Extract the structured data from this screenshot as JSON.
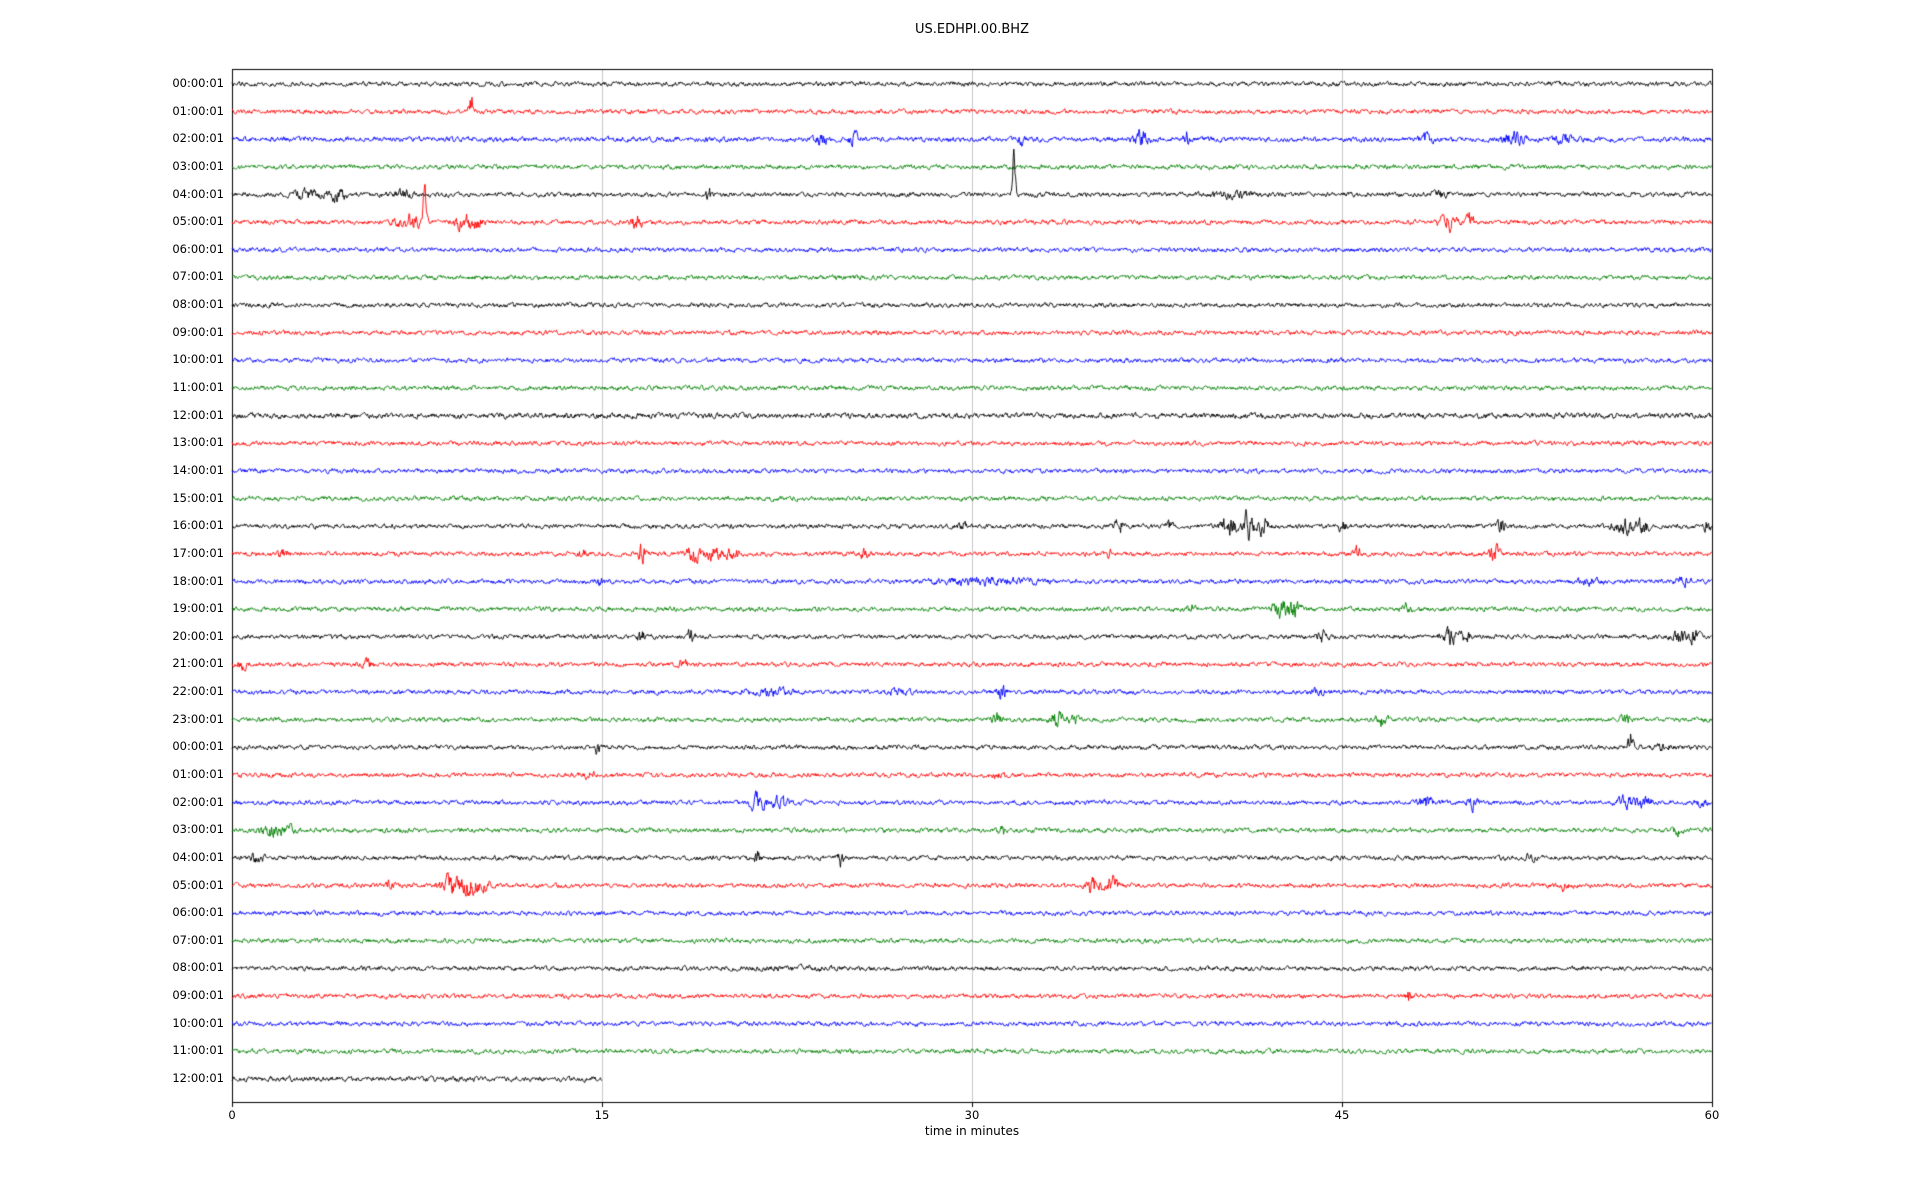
{
  "title": "US.EDHPI.00.BHZ",
  "chart_data": {
    "type": "line",
    "subtype": "helicorder-seismogram",
    "title": "US.EDHPI.00.BHZ",
    "xlabel": "time in minutes",
    "xlim": [
      0,
      60
    ],
    "xticks": [
      0,
      15,
      30,
      45,
      60
    ],
    "grid": "vertical gridlines at interior x ticks",
    "trace_color_cycle": [
      "#000000",
      "#ff0000",
      "#0000ff",
      "#008000"
    ],
    "rows": [
      {
        "label": "00:00:01",
        "color": "#000000",
        "amp": 1.0,
        "events": []
      },
      {
        "label": "01:00:01",
        "color": "#ff0000",
        "amp": 1.0,
        "events": [
          [
            9.7,
            0.12,
            4,
            9
          ]
        ]
      },
      {
        "label": "02:00:01",
        "color": "#0000ff",
        "amp": 1.1,
        "events": [
          [
            23.9,
            0.25,
            2.5
          ],
          [
            25.2,
            0.2,
            2.5
          ],
          [
            32.0,
            0.1,
            4
          ],
          [
            36.9,
            0.3,
            3
          ],
          [
            38.7,
            0.1,
            3
          ],
          [
            48.4,
            0.25,
            2.5
          ],
          [
            52.0,
            0.4,
            2.5
          ],
          [
            54.0,
            0.3,
            2.2
          ]
        ]
      },
      {
        "label": "03:00:01",
        "color": "#008000",
        "amp": 1.0,
        "events": []
      },
      {
        "label": "04:00:01",
        "color": "#000000",
        "amp": 1.0,
        "events": [
          [
            3.0,
            0.5,
            2.2
          ],
          [
            4.3,
            0.4,
            2.5
          ],
          [
            7.0,
            0.3,
            1.8
          ],
          [
            19.3,
            0.1,
            4
          ],
          [
            31.7,
            0.07,
            6,
            45
          ],
          [
            40.5,
            0.8,
            1.5
          ],
          [
            49.0,
            0.3,
            1.5
          ]
        ]
      },
      {
        "label": "05:00:01",
        "color": "#ff0000",
        "amp": 1.0,
        "events": [
          [
            7.2,
            0.5,
            3.5
          ],
          [
            7.8,
            0.08,
            5,
            30
          ],
          [
            9.4,
            0.35,
            4.5
          ],
          [
            10.0,
            0.2,
            3
          ],
          [
            16.4,
            0.2,
            4
          ],
          [
            49.3,
            0.4,
            3
          ],
          [
            50.2,
            0.15,
            5
          ]
        ]
      },
      {
        "label": "06:00:01",
        "color": "#0000ff",
        "amp": 1.0,
        "events": []
      },
      {
        "label": "07:00:01",
        "color": "#008000",
        "amp": 1.0,
        "events": []
      },
      {
        "label": "08:00:01",
        "color": "#000000",
        "amp": 1.0,
        "events": []
      },
      {
        "label": "09:00:01",
        "color": "#ff0000",
        "amp": 1.0,
        "events": []
      },
      {
        "label": "10:00:01",
        "color": "#0000ff",
        "amp": 1.0,
        "events": []
      },
      {
        "label": "11:00:01",
        "color": "#008000",
        "amp": 1.0,
        "events": []
      },
      {
        "label": "12:00:01",
        "color": "#000000",
        "amp": 1.2,
        "events": []
      },
      {
        "label": "13:00:01",
        "color": "#ff0000",
        "amp": 1.0,
        "events": []
      },
      {
        "label": "14:00:01",
        "color": "#0000ff",
        "amp": 1.0,
        "events": []
      },
      {
        "label": "15:00:01",
        "color": "#008000",
        "amp": 1.0,
        "events": []
      },
      {
        "label": "16:00:01",
        "color": "#000000",
        "amp": 1.0,
        "events": [
          [
            29.6,
            0.15,
            2.5
          ],
          [
            36.0,
            0.25,
            3
          ],
          [
            38.0,
            0.15,
            2
          ],
          [
            40.4,
            0.3,
            5
          ],
          [
            41.2,
            0.25,
            6
          ],
          [
            41.8,
            0.2,
            4
          ],
          [
            45.0,
            0.2,
            2
          ],
          [
            51.5,
            0.2,
            3
          ],
          [
            56.4,
            0.4,
            3.5
          ],
          [
            57.2,
            0.3,
            3
          ],
          [
            59.8,
            0.15,
            2.5
          ]
        ]
      },
      {
        "label": "17:00:01",
        "color": "#ff0000",
        "amp": 1.0,
        "events": [
          [
            2.0,
            0.3,
            1.8
          ],
          [
            14.2,
            0.15,
            2
          ],
          [
            16.6,
            0.15,
            4
          ],
          [
            18.7,
            0.3,
            3.5
          ],
          [
            19.5,
            0.3,
            3
          ],
          [
            20.3,
            0.25,
            3
          ],
          [
            25.6,
            0.15,
            3
          ],
          [
            35.6,
            0.1,
            2.5
          ],
          [
            45.6,
            0.15,
            3
          ],
          [
            51.2,
            0.2,
            3.5
          ]
        ]
      },
      {
        "label": "18:00:01",
        "color": "#0000ff",
        "amp": 1.0,
        "events": [
          [
            14.9,
            0.15,
            2.5
          ],
          [
            30.5,
            2.0,
            1.2
          ],
          [
            55.0,
            0.5,
            1.5
          ],
          [
            58.8,
            0.4,
            1.6
          ]
        ]
      },
      {
        "label": "19:00:01",
        "color": "#008000",
        "amp": 1.0,
        "events": [
          [
            38.9,
            0.15,
            2
          ],
          [
            42.4,
            0.3,
            4
          ],
          [
            43.0,
            0.3,
            3.5
          ],
          [
            47.6,
            0.2,
            2
          ]
        ]
      },
      {
        "label": "20:00:01",
        "color": "#000000",
        "amp": 1.0,
        "events": [
          [
            16.6,
            0.15,
            3
          ],
          [
            18.6,
            0.12,
            3.5
          ],
          [
            44.2,
            0.2,
            2.5
          ],
          [
            49.4,
            0.3,
            3
          ],
          [
            50.0,
            0.2,
            2.5
          ],
          [
            58.7,
            0.3,
            3
          ],
          [
            59.3,
            0.2,
            2.5
          ]
        ]
      },
      {
        "label": "21:00:01",
        "color": "#ff0000",
        "amp": 1.0,
        "events": [
          [
            0.4,
            0.2,
            2
          ],
          [
            5.5,
            0.2,
            1.6
          ],
          [
            18.3,
            0.2,
            1.6
          ]
        ]
      },
      {
        "label": "22:00:01",
        "color": "#0000ff",
        "amp": 1.0,
        "events": [
          [
            21.8,
            0.8,
            1.6
          ],
          [
            27.0,
            0.4,
            1.5
          ],
          [
            31.2,
            0.15,
            4
          ],
          [
            44.0,
            0.3,
            1.5
          ]
        ]
      },
      {
        "label": "23:00:01",
        "color": "#008000",
        "amp": 1.0,
        "events": [
          [
            31.0,
            0.2,
            2.5
          ],
          [
            33.4,
            0.3,
            3.5
          ],
          [
            34.1,
            0.2,
            2.5
          ],
          [
            46.6,
            0.25,
            2.8
          ],
          [
            56.5,
            0.2,
            1.8
          ]
        ]
      },
      {
        "label": "00:00:01",
        "color": "#000000",
        "amp": 1.0,
        "events": [
          [
            14.8,
            0.15,
            2
          ],
          [
            56.7,
            0.12,
            4,
            10
          ],
          [
            58.0,
            0.3,
            1.5
          ]
        ]
      },
      {
        "label": "01:00:01",
        "color": "#ff0000",
        "amp": 1.0,
        "events": [
          [
            14.5,
            0.2,
            1.6
          ],
          [
            31.0,
            0.3,
            1.4
          ]
        ]
      },
      {
        "label": "02:00:01",
        "color": "#0000ff",
        "amp": 1.0,
        "events": [
          [
            21.3,
            0.35,
            3.5
          ],
          [
            22.3,
            0.3,
            3
          ],
          [
            48.4,
            0.3,
            3
          ],
          [
            50.3,
            0.2,
            2.5
          ],
          [
            56.5,
            0.4,
            2.5
          ],
          [
            57.3,
            0.3,
            2.2
          ],
          [
            59.6,
            0.15,
            2
          ]
        ]
      },
      {
        "label": "03:00:01",
        "color": "#008000",
        "amp": 1.0,
        "events": [
          [
            1.5,
            0.4,
            2.5
          ],
          [
            2.3,
            0.3,
            2
          ],
          [
            31.2,
            0.12,
            4
          ],
          [
            58.6,
            0.2,
            1.8
          ]
        ]
      },
      {
        "label": "04:00:01",
        "color": "#000000",
        "amp": 1.0,
        "events": [
          [
            1.0,
            0.3,
            2
          ],
          [
            21.3,
            0.1,
            4
          ],
          [
            24.7,
            0.1,
            4
          ],
          [
            52.6,
            0.2,
            1.6
          ]
        ]
      },
      {
        "label": "05:00:01",
        "color": "#ff0000",
        "amp": 1.0,
        "events": [
          [
            6.4,
            0.15,
            2
          ],
          [
            8.8,
            0.4,
            4.5
          ],
          [
            9.6,
            0.35,
            5
          ],
          [
            10.2,
            0.2,
            3
          ],
          [
            34.9,
            0.3,
            3.5
          ],
          [
            35.7,
            0.25,
            4
          ],
          [
            54.0,
            0.15,
            1.6
          ]
        ]
      },
      {
        "label": "06:00:01",
        "color": "#0000ff",
        "amp": 1.0,
        "events": []
      },
      {
        "label": "07:00:01",
        "color": "#008000",
        "amp": 1.0,
        "events": []
      },
      {
        "label": "08:00:01",
        "color": "#000000",
        "amp": 1.0,
        "events": [
          [
            23.0,
            2.0,
            0.4
          ]
        ]
      },
      {
        "label": "09:00:01",
        "color": "#ff0000",
        "amp": 1.0,
        "events": [
          [
            47.7,
            0.1,
            3
          ]
        ]
      },
      {
        "label": "10:00:01",
        "color": "#0000ff",
        "amp": 1.0,
        "events": []
      },
      {
        "label": "11:00:01",
        "color": "#008000",
        "amp": 1.0,
        "events": []
      },
      {
        "label": "12:00:01",
        "color": "#000000",
        "amp": 1.1,
        "events": [],
        "end_min": 15
      }
    ]
  }
}
